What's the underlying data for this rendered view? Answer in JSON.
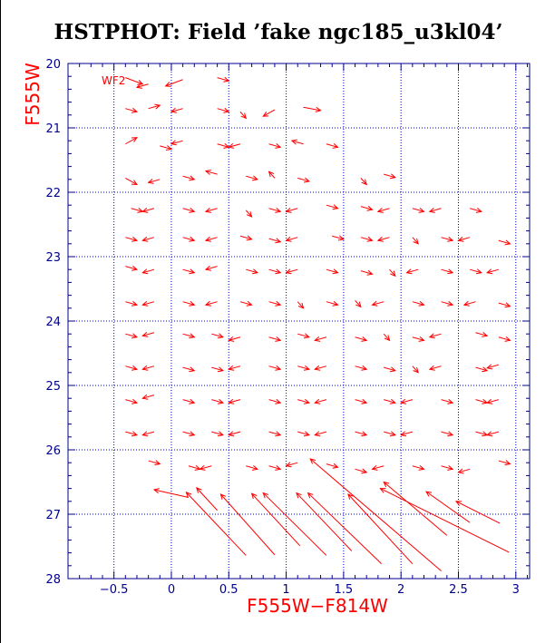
{
  "chart_data": {
    "type": "scatter",
    "title": "HSTPHOT: Field ’fake ngc185_u3kl04’",
    "xlabel": "F555W−F814W",
    "ylabel": "F555W",
    "panel_label": "WF2",
    "xlim": [
      -0.9,
      3.12
    ],
    "ylim": [
      28,
      20
    ],
    "x_ticks": [
      "−0.5",
      "0",
      "0.5",
      "1",
      "1.5",
      "2",
      "2.5",
      "3"
    ],
    "y_ticks": [
      "20",
      "21",
      "22",
      "23",
      "24",
      "25",
      "26",
      "27",
      "28"
    ],
    "grid": true,
    "colors": {
      "axis": "#00008b",
      "grid": "#0000cd",
      "data": "#ff0000",
      "title": "#000000"
    },
    "vectors": [
      {
        "x": -0.4,
        "y": 20.22,
        "dx": 0.15,
        "dy": 0.1
      },
      {
        "x": -0.2,
        "y": 20.32,
        "dx": -0.1,
        "dy": 0.05
      },
      {
        "x": 0.1,
        "y": 20.25,
        "dx": -0.15,
        "dy": 0.1
      },
      {
        "x": 0.4,
        "y": 20.22,
        "dx": 0.1,
        "dy": 0.05
      },
      {
        "x": -0.4,
        "y": 20.7,
        "dx": 0.1,
        "dy": 0.05
      },
      {
        "x": -0.2,
        "y": 20.7,
        "dx": 0.1,
        "dy": -0.05
      },
      {
        "x": 0.1,
        "y": 20.7,
        "dx": -0.1,
        "dy": 0.05
      },
      {
        "x": 0.4,
        "y": 20.7,
        "dx": 0.1,
        "dy": 0.05
      },
      {
        "x": 0.6,
        "y": 20.75,
        "dx": 0.05,
        "dy": 0.1
      },
      {
        "x": 0.9,
        "y": 20.72,
        "dx": -0.1,
        "dy": 0.1
      },
      {
        "x": 1.15,
        "y": 20.68,
        "dx": 0.15,
        "dy": 0.05
      },
      {
        "x": -0.4,
        "y": 21.25,
        "dx": 0.1,
        "dy": -0.1
      },
      {
        "x": -0.1,
        "y": 21.28,
        "dx": 0.1,
        "dy": 0.05
      },
      {
        "x": 0.1,
        "y": 21.2,
        "dx": -0.1,
        "dy": 0.05
      },
      {
        "x": 0.4,
        "y": 21.25,
        "dx": 0.1,
        "dy": 0.05
      },
      {
        "x": 0.6,
        "y": 21.25,
        "dx": -0.1,
        "dy": 0.05
      },
      {
        "x": 0.85,
        "y": 21.25,
        "dx": 0.1,
        "dy": 0.05
      },
      {
        "x": 1.15,
        "y": 21.25,
        "dx": -0.1,
        "dy": -0.05
      },
      {
        "x": 1.35,
        "y": 21.25,
        "dx": 0.1,
        "dy": 0.05
      },
      {
        "x": -0.4,
        "y": 21.78,
        "dx": 0.1,
        "dy": 0.1
      },
      {
        "x": -0.1,
        "y": 21.8,
        "dx": -0.1,
        "dy": 0.05
      },
      {
        "x": 0.1,
        "y": 21.75,
        "dx": 0.1,
        "dy": 0.05
      },
      {
        "x": 0.4,
        "y": 21.72,
        "dx": -0.1,
        "dy": -0.05
      },
      {
        "x": 0.65,
        "y": 21.75,
        "dx": 0.1,
        "dy": 0.05
      },
      {
        "x": 0.9,
        "y": 21.78,
        "dx": -0.05,
        "dy": -0.1
      },
      {
        "x": 1.1,
        "y": 21.78,
        "dx": 0.1,
        "dy": 0.05
      },
      {
        "x": 1.65,
        "y": 21.78,
        "dx": 0.05,
        "dy": 0.1
      },
      {
        "x": 1.85,
        "y": 21.72,
        "dx": 0.1,
        "dy": 0.05
      },
      {
        "x": -0.35,
        "y": 22.25,
        "dx": 0.1,
        "dy": 0.05
      },
      {
        "x": -0.15,
        "y": 22.25,
        "dx": -0.1,
        "dy": 0.05
      },
      {
        "x": 0.1,
        "y": 22.25,
        "dx": 0.1,
        "dy": 0.05
      },
      {
        "x": 0.4,
        "y": 22.25,
        "dx": -0.1,
        "dy": 0.05
      },
      {
        "x": 0.65,
        "y": 22.28,
        "dx": 0.05,
        "dy": 0.1
      },
      {
        "x": 0.85,
        "y": 22.25,
        "dx": 0.1,
        "dy": 0.05
      },
      {
        "x": 1.1,
        "y": 22.25,
        "dx": -0.1,
        "dy": 0.05
      },
      {
        "x": 1.35,
        "y": 22.2,
        "dx": 0.1,
        "dy": 0.05
      },
      {
        "x": 1.65,
        "y": 22.22,
        "dx": 0.1,
        "dy": 0.05
      },
      {
        "x": 1.9,
        "y": 22.25,
        "dx": -0.1,
        "dy": 0.05
      },
      {
        "x": 2.1,
        "y": 22.25,
        "dx": 0.1,
        "dy": 0.05
      },
      {
        "x": 2.35,
        "y": 22.25,
        "dx": -0.1,
        "dy": 0.05
      },
      {
        "x": 2.6,
        "y": 22.25,
        "dx": 0.1,
        "dy": 0.05
      },
      {
        "x": -0.4,
        "y": 22.7,
        "dx": 0.1,
        "dy": 0.05
      },
      {
        "x": -0.15,
        "y": 22.7,
        "dx": -0.1,
        "dy": 0.05
      },
      {
        "x": 0.1,
        "y": 22.7,
        "dx": 0.1,
        "dy": 0.05
      },
      {
        "x": 0.4,
        "y": 22.7,
        "dx": -0.1,
        "dy": 0.05
      },
      {
        "x": 0.6,
        "y": 22.68,
        "dx": 0.1,
        "dy": 0.05
      },
      {
        "x": 0.85,
        "y": 22.72,
        "dx": 0.1,
        "dy": 0.05
      },
      {
        "x": 1.1,
        "y": 22.7,
        "dx": -0.1,
        "dy": 0.05
      },
      {
        "x": 1.4,
        "y": 22.68,
        "dx": 0.1,
        "dy": 0.05
      },
      {
        "x": 1.65,
        "y": 22.7,
        "dx": 0.1,
        "dy": 0.05
      },
      {
        "x": 1.9,
        "y": 22.7,
        "dx": -0.1,
        "dy": 0.05
      },
      {
        "x": 2.1,
        "y": 22.7,
        "dx": 0.05,
        "dy": 0.1
      },
      {
        "x": 2.35,
        "y": 22.7,
        "dx": 0.1,
        "dy": 0.05
      },
      {
        "x": 2.6,
        "y": 22.7,
        "dx": -0.1,
        "dy": 0.05
      },
      {
        "x": 2.85,
        "y": 22.75,
        "dx": 0.1,
        "dy": 0.05
      },
      {
        "x": -0.4,
        "y": 23.15,
        "dx": 0.1,
        "dy": 0.05
      },
      {
        "x": -0.15,
        "y": 23.2,
        "dx": -0.1,
        "dy": 0.05
      },
      {
        "x": 0.1,
        "y": 23.2,
        "dx": 0.1,
        "dy": 0.05
      },
      {
        "x": 0.4,
        "y": 23.15,
        "dx": -0.1,
        "dy": 0.05
      },
      {
        "x": 0.65,
        "y": 23.2,
        "dx": 0.1,
        "dy": 0.05
      },
      {
        "x": 0.85,
        "y": 23.2,
        "dx": 0.1,
        "dy": 0.05
      },
      {
        "x": 1.1,
        "y": 23.2,
        "dx": -0.1,
        "dy": 0.05
      },
      {
        "x": 1.35,
        "y": 23.2,
        "dx": 0.1,
        "dy": 0.05
      },
      {
        "x": 1.65,
        "y": 23.22,
        "dx": 0.1,
        "dy": 0.05
      },
      {
        "x": 1.9,
        "y": 23.2,
        "dx": 0.05,
        "dy": 0.1
      },
      {
        "x": 2.15,
        "y": 23.2,
        "dx": -0.1,
        "dy": 0.05
      },
      {
        "x": 2.35,
        "y": 23.2,
        "dx": 0.1,
        "dy": 0.05
      },
      {
        "x": 2.6,
        "y": 23.2,
        "dx": 0.1,
        "dy": 0.05
      },
      {
        "x": 2.85,
        "y": 23.2,
        "dx": -0.1,
        "dy": 0.05
      },
      {
        "x": -0.4,
        "y": 23.7,
        "dx": 0.1,
        "dy": 0.05
      },
      {
        "x": -0.15,
        "y": 23.7,
        "dx": -0.1,
        "dy": 0.05
      },
      {
        "x": 0.1,
        "y": 23.7,
        "dx": 0.1,
        "dy": 0.05
      },
      {
        "x": 0.4,
        "y": 23.7,
        "dx": -0.1,
        "dy": 0.05
      },
      {
        "x": 0.6,
        "y": 23.7,
        "dx": 0.1,
        "dy": 0.05
      },
      {
        "x": 0.85,
        "y": 23.7,
        "dx": 0.1,
        "dy": 0.05
      },
      {
        "x": 1.1,
        "y": 23.7,
        "dx": 0.05,
        "dy": 0.1
      },
      {
        "x": 1.35,
        "y": 23.7,
        "dx": 0.1,
        "dy": 0.05
      },
      {
        "x": 1.6,
        "y": 23.68,
        "dx": 0.05,
        "dy": 0.1
      },
      {
        "x": 1.85,
        "y": 23.7,
        "dx": -0.1,
        "dy": 0.05
      },
      {
        "x": 2.1,
        "y": 23.7,
        "dx": 0.1,
        "dy": 0.05
      },
      {
        "x": 2.35,
        "y": 23.7,
        "dx": 0.1,
        "dy": 0.05
      },
      {
        "x": 2.65,
        "y": 23.7,
        "dx": -0.1,
        "dy": 0.05
      },
      {
        "x": 2.85,
        "y": 23.72,
        "dx": 0.1,
        "dy": 0.05
      },
      {
        "x": -0.4,
        "y": 24.2,
        "dx": 0.1,
        "dy": 0.05
      },
      {
        "x": -0.15,
        "y": 24.18,
        "dx": -0.1,
        "dy": 0.05
      },
      {
        "x": 0.1,
        "y": 24.2,
        "dx": 0.1,
        "dy": 0.05
      },
      {
        "x": 0.35,
        "y": 24.2,
        "dx": 0.1,
        "dy": 0.05
      },
      {
        "x": 0.6,
        "y": 24.25,
        "dx": -0.1,
        "dy": 0.05
      },
      {
        "x": 0.85,
        "y": 24.25,
        "dx": 0.1,
        "dy": 0.05
      },
      {
        "x": 1.1,
        "y": 24.2,
        "dx": 0.1,
        "dy": 0.05
      },
      {
        "x": 1.35,
        "y": 24.25,
        "dx": -0.1,
        "dy": 0.05
      },
      {
        "x": 1.6,
        "y": 24.25,
        "dx": 0.1,
        "dy": 0.05
      },
      {
        "x": 1.85,
        "y": 24.2,
        "dx": 0.05,
        "dy": 0.1
      },
      {
        "x": 2.1,
        "y": 24.25,
        "dx": 0.1,
        "dy": 0.05
      },
      {
        "x": 2.35,
        "y": 24.2,
        "dx": -0.1,
        "dy": 0.05
      },
      {
        "x": 2.65,
        "y": 24.18,
        "dx": 0.1,
        "dy": 0.05
      },
      {
        "x": 2.85,
        "y": 24.25,
        "dx": 0.1,
        "dy": 0.05
      },
      {
        "x": -0.4,
        "y": 24.7,
        "dx": 0.1,
        "dy": 0.05
      },
      {
        "x": -0.15,
        "y": 24.7,
        "dx": -0.1,
        "dy": 0.05
      },
      {
        "x": 0.1,
        "y": 24.72,
        "dx": 0.1,
        "dy": 0.05
      },
      {
        "x": 0.35,
        "y": 24.72,
        "dx": 0.1,
        "dy": 0.05
      },
      {
        "x": 0.6,
        "y": 24.7,
        "dx": -0.1,
        "dy": 0.05
      },
      {
        "x": 0.85,
        "y": 24.7,
        "dx": 0.1,
        "dy": 0.05
      },
      {
        "x": 1.1,
        "y": 24.7,
        "dx": 0.1,
        "dy": 0.05
      },
      {
        "x": 1.35,
        "y": 24.7,
        "dx": -0.1,
        "dy": 0.05
      },
      {
        "x": 1.6,
        "y": 24.7,
        "dx": 0.1,
        "dy": 0.05
      },
      {
        "x": 1.85,
        "y": 24.72,
        "dx": 0.1,
        "dy": 0.05
      },
      {
        "x": 2.1,
        "y": 24.7,
        "dx": 0.05,
        "dy": 0.1
      },
      {
        "x": 2.35,
        "y": 24.7,
        "dx": -0.1,
        "dy": 0.05
      },
      {
        "x": 2.65,
        "y": 24.72,
        "dx": 0.1,
        "dy": 0.05
      },
      {
        "x": 2.85,
        "y": 24.68,
        "dx": -0.1,
        "dy": 0.05
      },
      {
        "x": -0.4,
        "y": 25.22,
        "dx": 0.1,
        "dy": 0.05
      },
      {
        "x": -0.15,
        "y": 25.15,
        "dx": -0.1,
        "dy": 0.05
      },
      {
        "x": 0.1,
        "y": 25.22,
        "dx": 0.1,
        "dy": 0.05
      },
      {
        "x": 0.35,
        "y": 25.22,
        "dx": 0.1,
        "dy": 0.05
      },
      {
        "x": 0.6,
        "y": 25.22,
        "dx": -0.1,
        "dy": 0.05
      },
      {
        "x": 0.85,
        "y": 25.22,
        "dx": 0.1,
        "dy": 0.05
      },
      {
        "x": 1.1,
        "y": 25.22,
        "dx": 0.1,
        "dy": 0.05
      },
      {
        "x": 1.35,
        "y": 25.22,
        "dx": -0.1,
        "dy": 0.05
      },
      {
        "x": 1.6,
        "y": 25.22,
        "dx": 0.1,
        "dy": 0.05
      },
      {
        "x": 1.85,
        "y": 25.22,
        "dx": 0.1,
        "dy": 0.05
      },
      {
        "x": 2.1,
        "y": 25.22,
        "dx": -0.1,
        "dy": 0.05
      },
      {
        "x": 2.35,
        "y": 25.22,
        "dx": 0.1,
        "dy": 0.05
      },
      {
        "x": 2.65,
        "y": 25.22,
        "dx": 0.1,
        "dy": 0.05
      },
      {
        "x": 2.85,
        "y": 25.22,
        "dx": -0.1,
        "dy": 0.05
      },
      {
        "x": -0.4,
        "y": 25.72,
        "dx": 0.1,
        "dy": 0.05
      },
      {
        "x": -0.15,
        "y": 25.72,
        "dx": -0.1,
        "dy": 0.05
      },
      {
        "x": 0.1,
        "y": 25.72,
        "dx": 0.1,
        "dy": 0.05
      },
      {
        "x": 0.35,
        "y": 25.72,
        "dx": 0.1,
        "dy": 0.05
      },
      {
        "x": 0.6,
        "y": 25.72,
        "dx": -0.1,
        "dy": 0.05
      },
      {
        "x": 0.85,
        "y": 25.72,
        "dx": 0.1,
        "dy": 0.05
      },
      {
        "x": 1.1,
        "y": 25.72,
        "dx": 0.1,
        "dy": 0.05
      },
      {
        "x": 1.35,
        "y": 25.72,
        "dx": -0.1,
        "dy": 0.05
      },
      {
        "x": 1.6,
        "y": 25.72,
        "dx": 0.1,
        "dy": 0.05
      },
      {
        "x": 1.85,
        "y": 25.72,
        "dx": 0.1,
        "dy": 0.05
      },
      {
        "x": 2.1,
        "y": 25.72,
        "dx": -0.1,
        "dy": 0.05
      },
      {
        "x": 2.35,
        "y": 25.72,
        "dx": 0.1,
        "dy": 0.05
      },
      {
        "x": 2.65,
        "y": 25.72,
        "dx": 0.1,
        "dy": 0.05
      },
      {
        "x": 2.85,
        "y": 25.72,
        "dx": -0.1,
        "dy": 0.05
      },
      {
        "x": -0.2,
        "y": 26.17,
        "dx": 0.1,
        "dy": 0.05
      },
      {
        "x": 0.15,
        "y": 26.25,
        "dx": 0.1,
        "dy": 0.05
      },
      {
        "x": 0.35,
        "y": 26.25,
        "dx": -0.1,
        "dy": 0.05
      },
      {
        "x": 0.65,
        "y": 26.25,
        "dx": 0.1,
        "dy": 0.05
      },
      {
        "x": 0.85,
        "y": 26.25,
        "dx": 0.1,
        "dy": 0.05
      },
      {
        "x": 1.1,
        "y": 26.2,
        "dx": -0.1,
        "dy": 0.05
      },
      {
        "x": 1.35,
        "y": 26.22,
        "dx": 0.1,
        "dy": 0.05
      },
      {
        "x": 1.6,
        "y": 26.3,
        "dx": 0.1,
        "dy": 0.05
      },
      {
        "x": 1.85,
        "y": 26.25,
        "dx": -0.1,
        "dy": 0.05
      },
      {
        "x": 2.1,
        "y": 26.25,
        "dx": 0.1,
        "dy": 0.05
      },
      {
        "x": 2.35,
        "y": 26.25,
        "dx": 0.1,
        "dy": 0.05
      },
      {
        "x": 2.6,
        "y": 26.3,
        "dx": -0.1,
        "dy": 0.05
      },
      {
        "x": 2.85,
        "y": 26.17,
        "dx": 0.1,
        "dy": 0.05
      },
      {
        "x": 0.15,
        "y": 26.74,
        "dx": -0.3,
        "dy": -0.12
      },
      {
        "x": 0.4,
        "y": 26.94,
        "dx": -0.18,
        "dy": -0.35
      },
      {
        "x": 0.65,
        "y": 27.64,
        "dx": -0.52,
        "dy": -0.98
      },
      {
        "x": 0.9,
        "y": 27.63,
        "dx": -0.47,
        "dy": -0.94
      },
      {
        "x": 1.12,
        "y": 27.49,
        "dx": -0.42,
        "dy": -0.81
      },
      {
        "x": 1.35,
        "y": 27.64,
        "dx": -0.55,
        "dy": -0.97
      },
      {
        "x": 1.57,
        "y": 27.57,
        "dx": -0.48,
        "dy": -0.9
      },
      {
        "x": 1.83,
        "y": 27.77,
        "dx": -0.64,
        "dy": -1.1
      },
      {
        "x": 2.1,
        "y": 27.77,
        "dx": -0.56,
        "dy": -1.08
      },
      {
        "x": 2.35,
        "y": 27.88,
        "dx": -1.14,
        "dy": -1.74
      },
      {
        "x": 2.4,
        "y": 27.33,
        "dx": -0.55,
        "dy": -0.83
      },
      {
        "x": 2.6,
        "y": 27.13,
        "dx": -0.38,
        "dy": -0.48
      },
      {
        "x": 2.86,
        "y": 27.14,
        "dx": -0.38,
        "dy": -0.34
      },
      {
        "x": 2.94,
        "y": 27.59,
        "dx": -1.12,
        "dy": -0.99
      }
    ]
  }
}
